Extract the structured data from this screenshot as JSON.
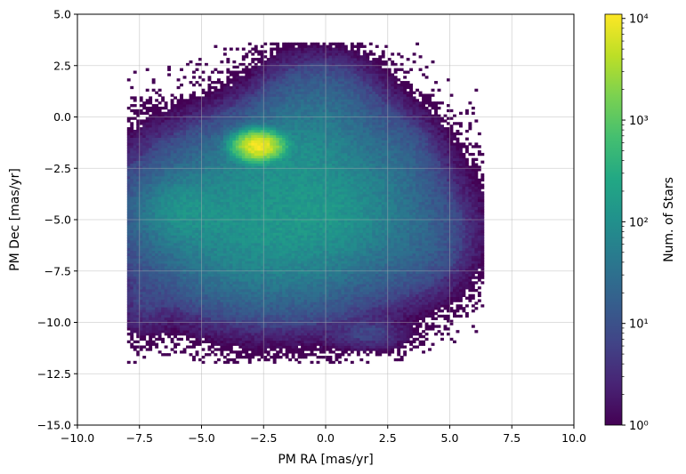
{
  "chart_data": {
    "type": "heatmap",
    "title": "",
    "xlabel": "PM RA [mas/yr]",
    "ylabel": "PM Dec [mas/yr]",
    "xlim": [
      -10,
      10
    ],
    "ylim": [
      -15,
      5
    ],
    "x_ticks": [
      -10,
      -7.5,
      -5,
      -2.5,
      0,
      2.5,
      5,
      7.5,
      10
    ],
    "x_tick_labels": [
      "−10.0",
      "−7.5",
      "−5.0",
      "−2.5",
      "0.0",
      "2.5",
      "5.0",
      "7.5",
      "10.0"
    ],
    "y_ticks": [
      5,
      2.5,
      0,
      -2.5,
      -5,
      -7.5,
      -10,
      -12.5,
      -15
    ],
    "y_tick_labels": [
      "5.0",
      "2.5",
      "0.0",
      "−2.5",
      "−5.0",
      "−7.5",
      "−10.0",
      "−12.5",
      "−15.0"
    ],
    "grid": true,
    "colormap": "viridis",
    "colorbar": {
      "label": "Num. of Stars",
      "scale": "log",
      "range": [
        1,
        11000
      ],
      "ticks": [
        1,
        10,
        100,
        1000,
        10000
      ],
      "tick_labels": [
        "10⁰",
        "10¹",
        "10²",
        "10³",
        "10⁴"
      ]
    },
    "density_peaks": [
      {
        "ra": -2.7,
        "dec": -1.4,
        "count": 10000
      },
      {
        "ra": -2.0,
        "dec": -5.5,
        "count": 150
      },
      {
        "ra": -5.8,
        "dec": -4.6,
        "count": 90
      },
      {
        "ra": 0.5,
        "dec": -4.5,
        "count": 70
      }
    ]
  }
}
